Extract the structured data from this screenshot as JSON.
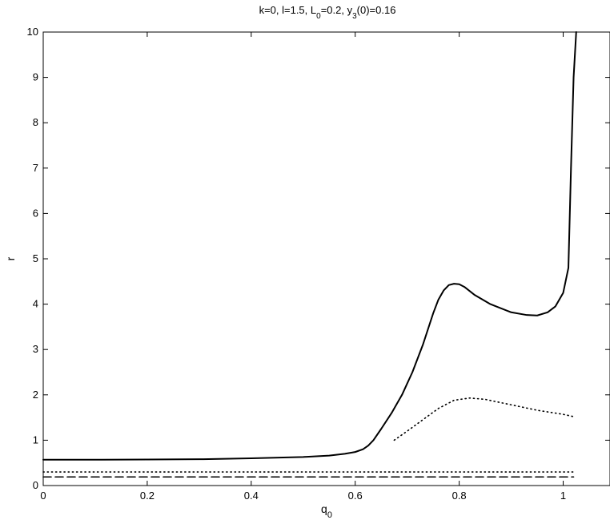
{
  "chart_data": {
    "type": "line",
    "title": {
      "prefix": "k=0, l=1.5, L",
      "sub1": "0",
      "middle": "=0.2, y",
      "sub2": "3",
      "suffix": "(0)=0.16"
    },
    "xlabel": {
      "main": "q",
      "sub": "0"
    },
    "ylabel": "r",
    "xlim": [
      0,
      1.09
    ],
    "ylim": [
      0,
      10
    ],
    "xticks": [
      0,
      0.2,
      0.4,
      0.6,
      0.8,
      1
    ],
    "xtick_labels": [
      "0",
      "0.2",
      "0.4",
      "0.6",
      "0.8",
      "1"
    ],
    "yticks": [
      0,
      1,
      2,
      3,
      4,
      5,
      6,
      7,
      8,
      9,
      10
    ],
    "ytick_labels": [
      "0",
      "1",
      "2",
      "3",
      "4",
      "5",
      "6",
      "7",
      "8",
      "9",
      "10"
    ],
    "grid": false,
    "series": [
      {
        "style": "solid",
        "color": "#000000",
        "x": [
          0,
          0.1,
          0.2,
          0.3,
          0.4,
          0.5,
          0.55,
          0.58,
          0.6,
          0.615,
          0.625,
          0.635,
          0.65,
          0.67,
          0.69,
          0.71,
          0.73,
          0.75,
          0.76,
          0.77,
          0.78,
          0.79,
          0.8,
          0.81,
          0.83,
          0.86,
          0.9,
          0.93,
          0.95,
          0.97,
          0.985,
          1.0,
          1.01,
          1.015,
          1.02,
          1.025
        ],
        "y": [
          0.57,
          0.57,
          0.575,
          0.58,
          0.6,
          0.63,
          0.66,
          0.7,
          0.74,
          0.8,
          0.88,
          1.0,
          1.25,
          1.6,
          2.0,
          2.5,
          3.1,
          3.8,
          4.1,
          4.3,
          4.42,
          4.45,
          4.44,
          4.38,
          4.2,
          4.0,
          3.82,
          3.76,
          3.75,
          3.82,
          3.95,
          4.25,
          4.8,
          7.0,
          9.0,
          10.0
        ]
      },
      {
        "style": "dotted",
        "color": "#000000",
        "x": [
          0.675,
          0.7,
          0.73,
          0.76,
          0.79,
          0.82,
          0.85,
          0.9,
          0.95,
          1.0,
          1.02
        ],
        "y": [
          1.0,
          1.2,
          1.45,
          1.7,
          1.88,
          1.93,
          1.9,
          1.78,
          1.66,
          1.57,
          1.52
        ]
      },
      {
        "style": "dotted",
        "color": "#000000",
        "x": [
          0,
          1.02
        ],
        "y": [
          0.3,
          0.3
        ]
      },
      {
        "style": "dashed",
        "color": "#000000",
        "x": [
          0,
          1.02
        ],
        "y": [
          0.19,
          0.19
        ]
      }
    ]
  }
}
